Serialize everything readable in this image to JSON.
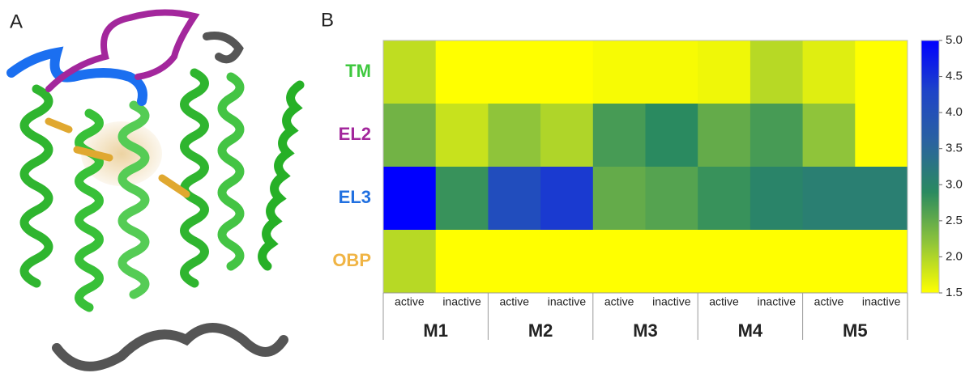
{
  "panel_labels": [
    "A",
    "B"
  ],
  "chart_data": {
    "type": "heatmap",
    "rows": [
      "TM",
      "EL2",
      "EL3",
      "OBP"
    ],
    "row_colors": [
      "#3ec83e",
      "#a3279c",
      "#2170e0",
      "#f0b444"
    ],
    "columns": [
      "active",
      "inactive",
      "active",
      "inactive",
      "active",
      "inactive",
      "active",
      "inactive",
      "active",
      "inactive"
    ],
    "groups": [
      "M1",
      "M2",
      "M3",
      "M4",
      "M5"
    ],
    "values": [
      [
        1.9,
        1.5,
        1.5,
        1.5,
        1.55,
        1.55,
        1.6,
        1.95,
        1.7,
        1.5
      ],
      [
        2.4,
        1.85,
        2.2,
        2.0,
        2.7,
        2.9,
        2.5,
        2.7,
        2.2,
        1.5
      ],
      [
        5.0,
        2.8,
        4.1,
        4.4,
        2.5,
        2.6,
        2.8,
        3.0,
        3.1,
        3.1
      ],
      [
        1.95,
        1.5,
        1.5,
        1.5,
        1.5,
        1.5,
        1.5,
        1.5,
        1.5,
        1.5
      ]
    ],
    "zlim": [
      1.5,
      5.0
    ],
    "zticks": [
      1.5,
      {
        "value": 2.0,
        "label": "2.0"
      },
      2.5,
      {
        "value": 3.0,
        "label": "3.0"
      },
      3.5,
      {
        "value": 4.0,
        "label": "4.0"
      },
      4.5,
      {
        "value": 5.0,
        "label": "5.0"
      }
    ],
    "colormap": [
      "#ffff00",
      "#8fc43a",
      "#2a8a60",
      "#2a62a0",
      "#1e44c8",
      "#0000ff"
    ]
  }
}
